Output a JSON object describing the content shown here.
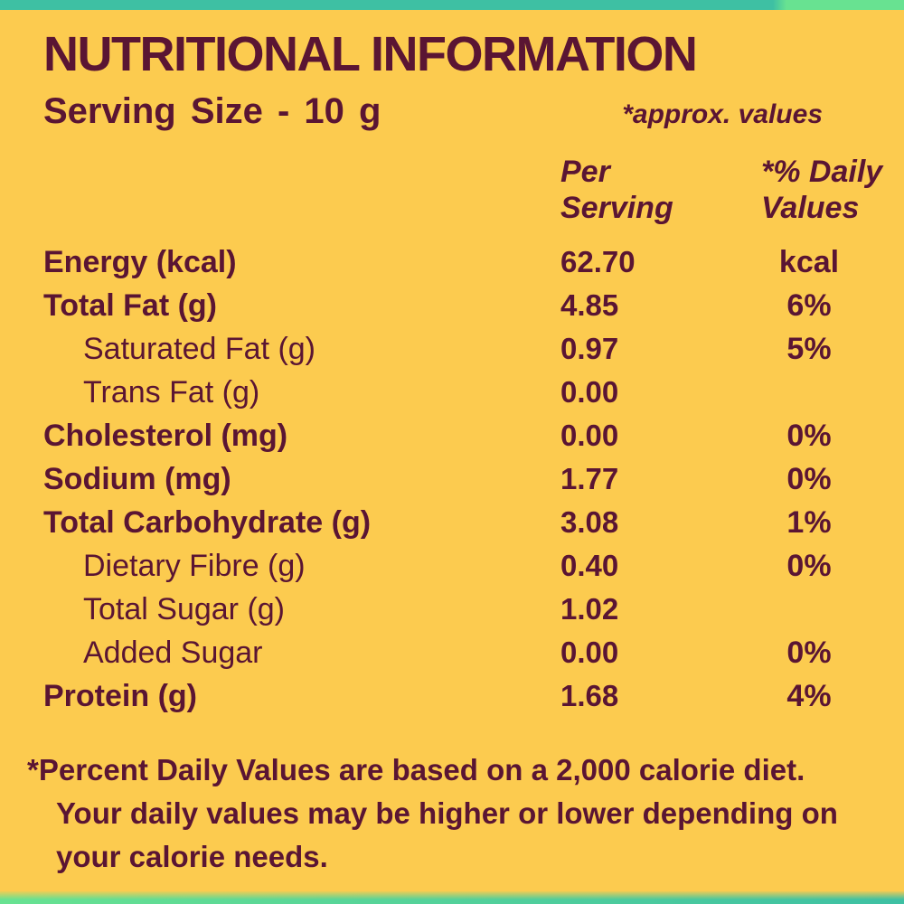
{
  "colors": {
    "background": "#FCCB4F",
    "text_maroon": "#5A1533",
    "strip_teal": "#3EC0A3",
    "strip_light_green": "#68E291"
  },
  "header": {
    "title": "NUTRITIONAL INFORMATION",
    "serving_size": "Serving Size - 10 g",
    "approx_note": "*approx. values"
  },
  "table": {
    "columns": {
      "per_serving": "Per Serving",
      "daily_values": "*% Daily Values"
    },
    "rows": [
      {
        "label": "Energy (kcal)",
        "indent": false,
        "per_serving": "62.70",
        "daily_value": "kcal"
      },
      {
        "label": "Total Fat (g)",
        "indent": false,
        "per_serving": "4.85",
        "daily_value": "6%"
      },
      {
        "label": "Saturated Fat (g)",
        "indent": true,
        "per_serving": "0.97",
        "daily_value": "5%"
      },
      {
        "label": "Trans Fat (g)",
        "indent": true,
        "per_serving": "0.00",
        "daily_value": ""
      },
      {
        "label": "Cholesterol (mg)",
        "indent": false,
        "per_serving": "0.00",
        "daily_value": "0%"
      },
      {
        "label": "Sodium (mg)",
        "indent": false,
        "per_serving": "1.77",
        "daily_value": "0%"
      },
      {
        "label": "Total Carbohydrate (g)",
        "indent": false,
        "per_serving": "3.08",
        "daily_value": "1%"
      },
      {
        "label": "Dietary Fibre (g)",
        "indent": true,
        "per_serving": "0.40",
        "daily_value": "0%"
      },
      {
        "label": "Total Sugar (g)",
        "indent": true,
        "per_serving": "1.02",
        "daily_value": ""
      },
      {
        "label": "Added Sugar",
        "indent": true,
        "per_serving": "0.00",
        "daily_value": "0%"
      },
      {
        "label": "Protein (g)",
        "indent": false,
        "per_serving": "1.68",
        "daily_value": "4%"
      }
    ]
  },
  "footnote": {
    "text": "*Percent Daily Values are based on a 2,000 calorie diet. Your daily values may be higher or lower depending on your calorie needs.",
    "lines": [
      "*Percent Daily Values are based on a 2,000 calorie diet.",
      "Your daily values may be higher or lower depending on",
      "your calorie needs."
    ]
  }
}
